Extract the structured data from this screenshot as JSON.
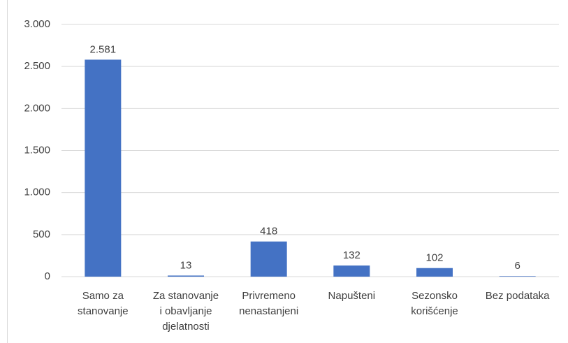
{
  "chart_data": {
    "type": "bar",
    "categories": [
      [
        "Samo za",
        "stanovanje"
      ],
      [
        "Za stanovanje",
        "i obavljanje",
        "djelatnosti"
      ],
      [
        "Privremeno",
        "nenastanjeni"
      ],
      [
        "Napušteni"
      ],
      [
        "Sezonsko",
        "korišćenje"
      ],
      [
        "Bez podataka"
      ]
    ],
    "values": [
      2581,
      13,
      418,
      132,
      102,
      6
    ],
    "value_labels": [
      "2.581",
      "13",
      "418",
      "132",
      "102",
      "6"
    ],
    "color": "#4472c4",
    "ylim": [
      0,
      3000
    ],
    "yticks": [
      0,
      500,
      {
        "value": 1000,
        "label": "1.000"
      },
      {
        "value": 1500,
        "label": "1.500"
      },
      {
        "value": 2000,
        "label": "2.000"
      },
      {
        "value": 2500,
        "label": "2.500"
      },
      {
        "value": 3000,
        "label": "3.000"
      }
    ],
    "grid": true
  }
}
